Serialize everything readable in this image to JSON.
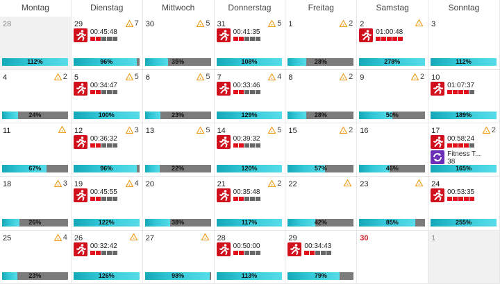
{
  "weekdays": [
    "Montag",
    "Dienstag",
    "Mittwoch",
    "Donnerstag",
    "Freitag",
    "Samstag",
    "Sonntag"
  ],
  "colors": {
    "accent": "#31c6d6",
    "run": "#d0101d",
    "fitness": "#6a2fb6",
    "warning": "#f0a020",
    "highlight_day": "#d2202a"
  },
  "weeks": [
    [
      {
        "day": "28",
        "other": true,
        "progress": 112,
        "progress_label": "112%"
      },
      {
        "day": "29",
        "badge": "7",
        "acts": [
          {
            "type": "run",
            "time": "00:45:48",
            "level": 2
          }
        ],
        "progress": 96,
        "progress_label": "96%"
      },
      {
        "day": "30",
        "badge": "5",
        "progress": 35,
        "progress_label": "35%"
      },
      {
        "day": "31",
        "badge": "5",
        "acts": [
          {
            "type": "run",
            "time": "00:41:35",
            "level": 2
          }
        ],
        "progress": 108,
        "progress_label": "108%"
      },
      {
        "day": "1",
        "badge": "2",
        "progress": 28,
        "progress_label": "28%"
      },
      {
        "day": "2",
        "badge": "",
        "acts": [
          {
            "type": "run",
            "time": "01:00:48",
            "level": 5
          }
        ],
        "progress": 278,
        "progress_label": "278%"
      },
      {
        "day": "3",
        "progress": 112,
        "progress_label": "112%"
      }
    ],
    [
      {
        "day": "4",
        "badge": "2",
        "progress": 24,
        "progress_label": "24%"
      },
      {
        "day": "5",
        "badge": "5",
        "acts": [
          {
            "type": "run",
            "time": "00:34:47",
            "level": 2
          }
        ],
        "progress": 100,
        "progress_label": "100%"
      },
      {
        "day": "6",
        "badge": "5",
        "progress": 23,
        "progress_label": "23%"
      },
      {
        "day": "7",
        "badge": "4",
        "acts": [
          {
            "type": "run",
            "time": "00:33:46",
            "level": 2
          }
        ],
        "progress": 129,
        "progress_label": "129%"
      },
      {
        "day": "8",
        "badge": "2",
        "progress": 28,
        "progress_label": "28%"
      },
      {
        "day": "9",
        "badge": "2",
        "progress": 50,
        "progress_label": "50%"
      },
      {
        "day": "10",
        "acts": [
          {
            "type": "run",
            "time": "01:07:37",
            "level": 4
          }
        ],
        "progress": 189,
        "progress_label": "189%"
      }
    ],
    [
      {
        "day": "11",
        "badge": "",
        "progress": 67,
        "progress_label": "67%"
      },
      {
        "day": "12",
        "badge": "3",
        "acts": [
          {
            "type": "run",
            "time": "00:36:32",
            "level": 2
          }
        ],
        "progress": 96,
        "progress_label": "96%"
      },
      {
        "day": "13",
        "badge": "5",
        "progress": 22,
        "progress_label": "22%"
      },
      {
        "day": "14",
        "badge": "5",
        "acts": [
          {
            "type": "run",
            "time": "00:39:32",
            "level": 2
          }
        ],
        "progress": 120,
        "progress_label": "120%"
      },
      {
        "day": "15",
        "badge": "2",
        "progress": 57,
        "progress_label": "57%"
      },
      {
        "day": "16",
        "progress": 46,
        "progress_label": "46%"
      },
      {
        "day": "17",
        "badge": "2",
        "acts": [
          {
            "type": "run",
            "time": "00:58:24",
            "level": 4
          },
          {
            "type": "fitness",
            "name": "Fitness T...",
            "value": "38"
          }
        ],
        "progress": 165,
        "progress_label": "165%"
      }
    ],
    [
      {
        "day": "18",
        "badge": "3",
        "progress": 26,
        "progress_label": "26%"
      },
      {
        "day": "19",
        "badge": "4",
        "acts": [
          {
            "type": "run",
            "time": "00:45:55",
            "level": 2
          }
        ],
        "progress": 122,
        "progress_label": "122%"
      },
      {
        "day": "20",
        "progress": 38,
        "progress_label": "38%"
      },
      {
        "day": "21",
        "badge": "2",
        "acts": [
          {
            "type": "run",
            "time": "00:35:48",
            "level": 2
          }
        ],
        "progress": 117,
        "progress_label": "117%"
      },
      {
        "day": "22",
        "badge": "",
        "progress": 42,
        "progress_label": "42%"
      },
      {
        "day": "23",
        "badge": "",
        "progress": 85,
        "progress_label": "85%"
      },
      {
        "day": "24",
        "acts": [
          {
            "type": "run",
            "time": "00:53:35",
            "level": 5
          }
        ],
        "progress": 255,
        "progress_label": "255%"
      }
    ],
    [
      {
        "day": "25",
        "badge": "4",
        "progress": 23,
        "progress_label": "23%"
      },
      {
        "day": "26",
        "badge": "",
        "acts": [
          {
            "type": "run",
            "time": "00:32:42",
            "level": 2
          }
        ],
        "progress": 126,
        "progress_label": "126%"
      },
      {
        "day": "27",
        "badge": "",
        "progress": 98,
        "progress_label": "98%"
      },
      {
        "day": "28",
        "acts": [
          {
            "type": "run",
            "time": "00:50:00",
            "level": 2
          }
        ],
        "progress": 113,
        "progress_label": "113%"
      },
      {
        "day": "29",
        "acts": [
          {
            "type": "run",
            "time": "00:34:43",
            "level": 2
          }
        ],
        "progress": 79,
        "progress_label": "79%"
      },
      {
        "day": "30",
        "highlight": true
      },
      {
        "day": "1",
        "other": true
      }
    ]
  ]
}
